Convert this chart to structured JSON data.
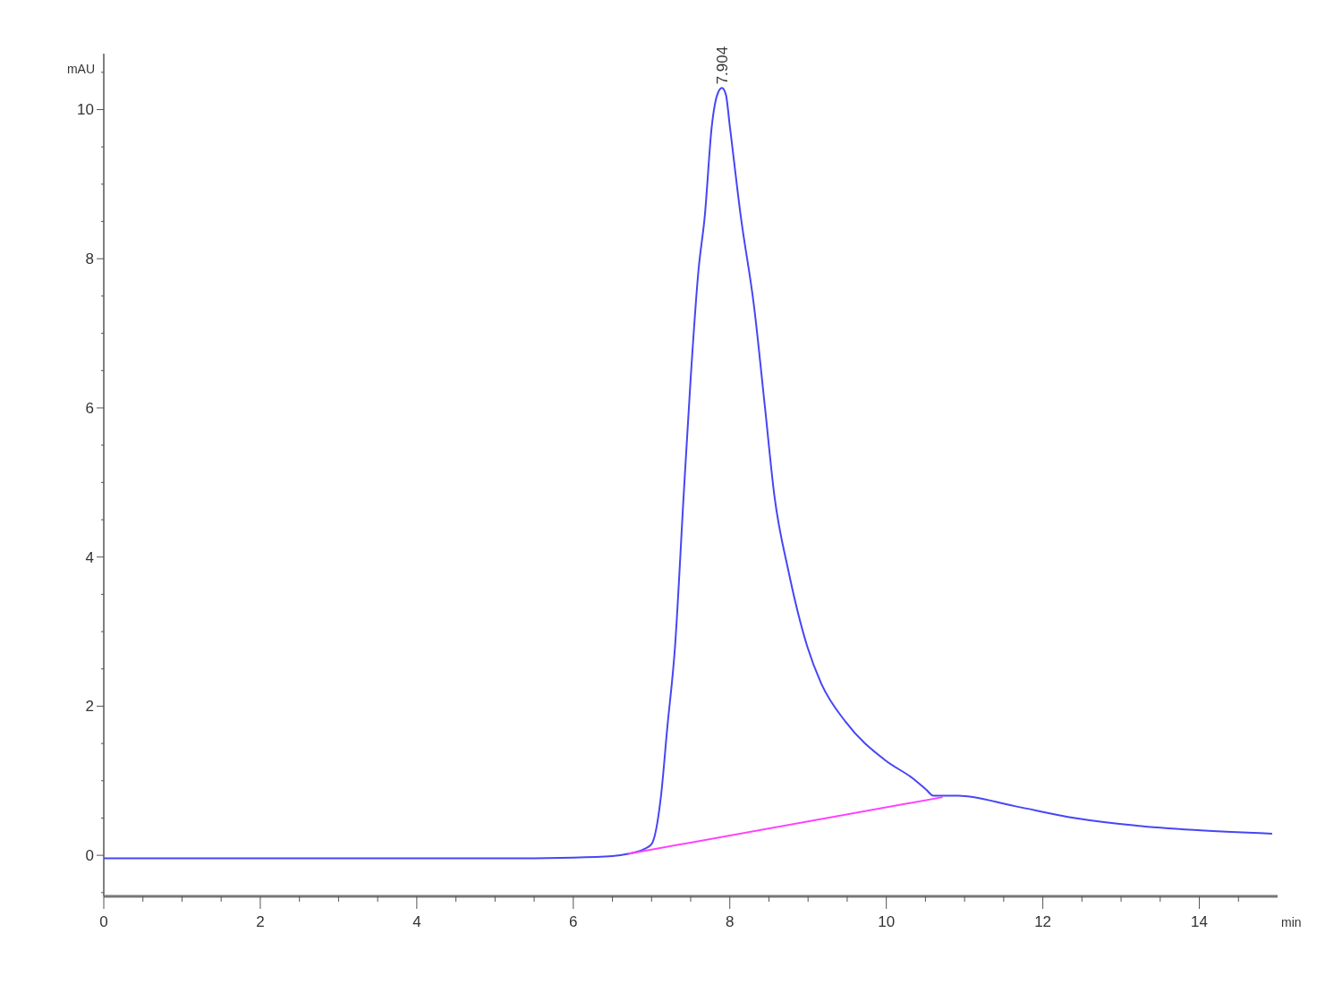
{
  "chart_data": {
    "type": "line",
    "xlabel": "min",
    "ylabel": "mAU",
    "xlim": [
      0,
      15
    ],
    "ylim": [
      -0.55,
      10.75
    ],
    "xticks": [
      0,
      {
        "value": 0.5,
        "label": null
      },
      {
        "value": 1,
        "label": null
      },
      {
        "value": 1.5,
        "label": null
      },
      2,
      {
        "value": 2.5,
        "label": null
      },
      {
        "value": 3,
        "label": null
      },
      {
        "value": 3.5,
        "label": null
      },
      4,
      {
        "value": 4.5,
        "label": null
      },
      {
        "value": 5,
        "label": null
      },
      {
        "value": 5.5,
        "label": null
      },
      6,
      {
        "value": 6.5,
        "label": null
      },
      {
        "value": 7,
        "label": null
      },
      {
        "value": 7.5,
        "label": null
      },
      8,
      {
        "value": 8.5,
        "label": null
      },
      {
        "value": 9,
        "label": null
      },
      {
        "value": 9.5,
        "label": null
      },
      10,
      {
        "value": 10.5,
        "label": null
      },
      {
        "value": 11,
        "label": null
      },
      {
        "value": 11.5,
        "label": null
      },
      12,
      {
        "value": 12.5,
        "label": null
      },
      {
        "value": 13,
        "label": null
      },
      {
        "value": 13.5,
        "label": null
      },
      14,
      {
        "value": 14.5,
        "label": null
      }
    ],
    "yticks": [
      {
        "value": -0.5,
        "label": null
      },
      0,
      {
        "value": 0.5,
        "label": null
      },
      {
        "value": 1,
        "label": null
      },
      {
        "value": 1.5,
        "label": null
      },
      2,
      {
        "value": 2.5,
        "label": null
      },
      {
        "value": 3,
        "label": null
      },
      {
        "value": 3.5,
        "label": null
      },
      4,
      {
        "value": 4.5,
        "label": null
      },
      {
        "value": 5,
        "label": null
      },
      {
        "value": 5.5,
        "label": null
      },
      6,
      {
        "value": 6.5,
        "label": null
      },
      {
        "value": 7,
        "label": null
      },
      {
        "value": 7.5,
        "label": null
      },
      8,
      {
        "value": 8.5,
        "label": null
      },
      {
        "value": 9,
        "label": null
      },
      {
        "value": 9.5,
        "label": null
      },
      10,
      {
        "value": 10.5,
        "label": null
      }
    ],
    "grid": false,
    "marker": "none",
    "line_style": "solid",
    "series": [
      {
        "color": "#4646f5",
        "x": [
          0,
          1,
          2,
          3,
          4,
          5,
          6,
          6.5,
          6.7,
          6.9,
          7.0,
          7.12,
          7.2,
          7.3,
          7.41,
          7.5,
          7.6,
          7.68,
          7.77,
          7.84,
          7.9,
          7.95,
          8.0,
          8.14,
          8.31,
          8.45,
          8.57,
          8.75,
          8.99,
          9.17,
          9.48,
          9.98,
          10.34,
          10.51,
          10.6,
          10.92,
          11.64,
          12.41,
          13.18,
          13.93,
          14.93
        ],
        "values": [
          -0.04,
          -0.04,
          -0.04,
          -0.04,
          -0.04,
          -0.04,
          -0.03,
          -0.01,
          0.02,
          0.08,
          0.15,
          0.79,
          1.7,
          2.8,
          4.82,
          6.4,
          7.85,
          8.57,
          9.78,
          10.2,
          10.29,
          10.2,
          9.78,
          8.57,
          7.36,
          6.0,
          4.82,
          3.81,
          2.8,
          2.3,
          1.79,
          1.28,
          1.03,
          0.88,
          0.8,
          0.8,
          0.66,
          0.5,
          0.4,
          0.34,
          0.29
        ]
      },
      {
        "color": "#ff40ff",
        "x": [
          6.7,
          10.72
        ],
        "values": [
          0.02,
          0.78
        ]
      }
    ],
    "annotations": [
      {
        "text": "7.904",
        "x": 7.904,
        "y": 10.29
      }
    ]
  }
}
